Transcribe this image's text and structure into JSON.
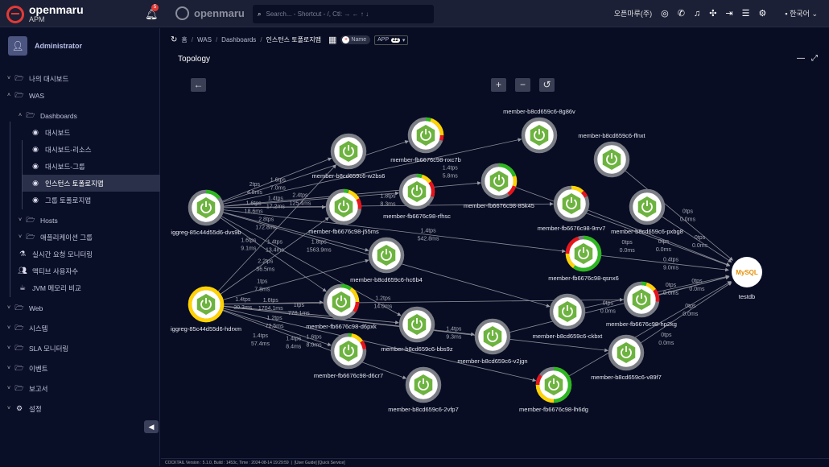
{
  "header": {
    "brand": "openmaru",
    "brand_sub": "APM",
    "notification_count": "5",
    "logo2": "openmaru",
    "search_placeholder": "Search... - Shortcut - /, Ctl: → ← ↑ ↓",
    "company": "오픈마루(주)",
    "language": "한국어",
    "icons": [
      "chat-monitor-icon",
      "phone-icon",
      "bell-icon",
      "fullscreen-icon",
      "logout-icon",
      "menu-icon",
      "gear-icon"
    ]
  },
  "sidebar": {
    "user": "Administrator",
    "items": [
      {
        "label": "나의 대시보드",
        "level": 0,
        "chev": "down",
        "icon": "folder"
      },
      {
        "label": "WAS",
        "level": 0,
        "chev": "up",
        "icon": "folder"
      },
      {
        "label": "Dashboards",
        "level": 1,
        "chev": "up",
        "icon": "folder"
      },
      {
        "label": "대시보드",
        "level": 2,
        "icon": "gauge"
      },
      {
        "label": "대시보드-리소스",
        "level": 2,
        "icon": "gauge"
      },
      {
        "label": "대시보드-그룹",
        "level": 2,
        "icon": "gauge"
      },
      {
        "label": "인스턴스 토폴로지맵",
        "level": 2,
        "icon": "gauge",
        "active": true
      },
      {
        "label": "그룹 토폴로지맵",
        "level": 2,
        "icon": "gauge"
      },
      {
        "label": "Hosts",
        "level": 1,
        "chev": "down",
        "icon": "folder"
      },
      {
        "label": "애플리케이션 그룹",
        "level": 1,
        "chev": "down",
        "icon": "folder"
      },
      {
        "label": "실시간 요청 모니터링",
        "level": 1,
        "icon": "flask"
      },
      {
        "label": "액티브 사용자수",
        "level": 1,
        "icon": "users"
      },
      {
        "label": "JVM 메모리 비교",
        "level": 1,
        "icon": "coffee"
      },
      {
        "label": "Web",
        "level": 0,
        "chev": "down",
        "icon": "folder"
      },
      {
        "label": "시스템",
        "level": 0,
        "chev": "down",
        "icon": "folder"
      },
      {
        "label": "SLA 모니터링",
        "level": 0,
        "chev": "down",
        "icon": "folder"
      },
      {
        "label": "이벤트",
        "level": 0,
        "chev": "down",
        "icon": "folder"
      },
      {
        "label": "보고서",
        "level": 0,
        "chev": "down",
        "icon": "folder"
      },
      {
        "label": "설정",
        "level": 0,
        "chev": "down",
        "icon": "gears"
      }
    ]
  },
  "breadcrumb": [
    "홈",
    "WAS",
    "Dashboards",
    "인스턴스 토폴로지맵"
  ],
  "filter": {
    "name_label": "Name",
    "app_label": "APP",
    "app_count": "22"
  },
  "panel": {
    "title": "Topology"
  },
  "topology": {
    "nodes": [
      {
        "id": "iggreg-85c44d55d6-dvs9b",
        "type": "spring",
        "ring": {
          "green": 0.15,
          "yellow": 0,
          "red": 0
        }
      },
      {
        "id": "iggreg-85c44d55d6-hdrxm",
        "type": "spring",
        "ring": {
          "green": 0,
          "yellow": 1,
          "red": 0
        }
      },
      {
        "id": "member-b8cd659c6-w2bs6",
        "type": "spring",
        "ring": {
          "green": 0,
          "yellow": 0,
          "red": 0
        }
      },
      {
        "id": "member-fb6676c98-nxc7b",
        "type": "spring",
        "ring": {
          "green": 0.05,
          "yellow": 0.2,
          "red": 0.05
        }
      },
      {
        "id": "member-b8cd659c6-8g86v",
        "type": "spring",
        "ring": {
          "green": 0,
          "yellow": 0,
          "red": 0
        }
      },
      {
        "id": "member-b8cd659c6-ffnxt",
        "type": "spring",
        "ring": {
          "green": 0,
          "yellow": 0,
          "red": 0
        }
      },
      {
        "id": "member-fb6676c98-j55ms",
        "type": "spring",
        "ring": {
          "green": 0.05,
          "yellow": 0.12,
          "red": 0.1
        }
      },
      {
        "id": "member-fb6676c98-rfhsc",
        "type": "spring",
        "ring": {
          "green": 0.05,
          "yellow": 0.1,
          "red": 0.15
        }
      },
      {
        "id": "member-fb6676c98-85k45",
        "type": "spring",
        "ring": {
          "green": 0.2,
          "yellow": 0.1,
          "red": 0.1
        }
      },
      {
        "id": "member-fb6676c98-9rrv7",
        "type": "spring",
        "ring": {
          "green": 0,
          "yellow": 0.12,
          "red": 0.06
        }
      },
      {
        "id": "member-b8cd659c6-pxbg8",
        "type": "spring",
        "ring": {
          "green": 0,
          "yellow": 0,
          "red": 0
        }
      },
      {
        "id": "member-b8cd659c6-hc6b4",
        "type": "spring",
        "ring": {
          "green": 0,
          "yellow": 0,
          "red": 0
        }
      },
      {
        "id": "member-fb6676c98-qsnx6",
        "type": "spring",
        "ring": {
          "green": 0.6,
          "yellow": 0.15,
          "red": 0.2
        }
      },
      {
        "id": "member-fb6676c98-d6pxk",
        "type": "spring",
        "ring": {
          "green": 0.1,
          "yellow": 0.15,
          "red": 0.1
        }
      },
      {
        "id": "member-b8cd659c6-bbs9z",
        "type": "spring",
        "ring": {
          "green": 0,
          "yellow": 0,
          "red": 0
        }
      },
      {
        "id": "member-b8cd659c6-ckbxt",
        "type": "spring",
        "ring": {
          "green": 0,
          "yellow": 0,
          "red": 0
        }
      },
      {
        "id": "member-fb6676c98-hp2kg",
        "type": "spring",
        "ring": {
          "green": 0.05,
          "yellow": 0.1,
          "red": 0.12
        }
      },
      {
        "id": "member-b8cd659c6-v2jgn",
        "type": "spring",
        "ring": {
          "green": 0,
          "yellow": 0,
          "red": 0
        }
      },
      {
        "id": "member-fb6676c98-d6cr7",
        "type": "spring",
        "ring": {
          "green": 0.03,
          "yellow": 0.12,
          "red": 0.08
        }
      },
      {
        "id": "member-b8cd659c6-v89f7",
        "type": "spring",
        "ring": {
          "green": 0,
          "yellow": 0,
          "red": 0
        }
      },
      {
        "id": "member-b8cd659c6-2vfp7",
        "type": "spring",
        "ring": {
          "green": 0,
          "yellow": 0,
          "red": 0
        }
      },
      {
        "id": "member-fb6676c98-lh6dg",
        "type": "spring",
        "ring": {
          "green": 0.5,
          "yellow": 0.25,
          "red": 0.1
        }
      },
      {
        "id": "testdb",
        "type": "mysql",
        "ring": {
          "green": 0,
          "yellow": 0,
          "red": 0
        }
      }
    ],
    "edges": [
      [
        "iggreg-85c44d55d6-dvs9b",
        "member-b8cd659c6-w2bs6",
        "2tps",
        "4.8ms"
      ],
      [
        "iggreg-85c44d55d6-dvs9b",
        "member-fb6676c98-nxc7b",
        "1.6tps",
        "7.0ms"
      ],
      [
        "iggreg-85c44d55d6-dvs9b",
        "member-fb6676c98-j55ms",
        "1.6tps",
        "18.6ms"
      ],
      [
        "iggreg-85c44d55d6-dvs9b",
        "member-fb6676c98-rfhsc",
        "1.4tps",
        "17.2ms"
      ],
      [
        "iggreg-85c44d55d6-dvs9b",
        "member-fb6676c98-85k45",
        "2.4tps",
        "125.4ms"
      ],
      [
        "iggreg-85c44d55d6-dvs9b",
        "member-b8cd659c6-hc6b4",
        "2.8tps",
        "172.8ms"
      ],
      [
        "iggreg-85c44d55d6-dvs9b",
        "member-fb6676c98-9rrv7",
        "1.8tps",
        "8.3ms"
      ],
      [
        "iggreg-85c44d55d6-dvs9b",
        "member-b8cd659c6-8g86v",
        "1.4tps",
        "5.8ms"
      ],
      [
        "iggreg-85c44d55d6-dvs9b",
        "member-fb6676c98-qsnx6",
        "1.4tps",
        "542.8ms"
      ],
      [
        "iggreg-85c44d55d6-dvs9b",
        "member-fb6676c98-d6pxk",
        "1.6tps",
        "9.1ms"
      ],
      [
        "iggreg-85c44d55d6-dvs9b",
        "member-b8cd659c6-bbs9z",
        "1.4tps",
        "13.4ms"
      ],
      [
        "iggreg-85c44d55d6-dvs9b",
        "member-b8cd659c6-ckbxt",
        "1.8tps",
        "1563.9ms"
      ],
      [
        "iggreg-85c44d55d6-hdrxm",
        "member-b8cd659c6-w2bs6",
        "2.2tps",
        "36.5ms"
      ],
      [
        "iggreg-85c44d55d6-hdrxm",
        "member-fb6676c98-j55ms",
        "1tps",
        "7.8ms"
      ],
      [
        "iggreg-85c44d55d6-hdrxm",
        "member-b8cd659c6-hc6b4",
        "1.6tps",
        "1704.1ms"
      ],
      [
        "iggreg-85c44d55d6-hdrxm",
        "member-fb6676c98-d6pxk",
        "1.4tps",
        "30.3ms"
      ],
      [
        "iggreg-85c44d55d6-hdrxm",
        "member-b8cd659c6-bbs9z",
        "1.2tps",
        "72.5ms"
      ],
      [
        "iggreg-85c44d55d6-hdrxm",
        "member-fb6676c98-d6cr7",
        "1.4tps",
        "57.4ms"
      ],
      [
        "iggreg-85c44d55d6-hdrxm",
        "member-b8cd659c6-2vfp7",
        "1.4tps",
        "8.4ms"
      ],
      [
        "iggreg-85c44d55d6-hdrxm",
        "member-b8cd659c6-v2jgn",
        "1tps",
        "778.1ms"
      ],
      [
        "iggreg-85c44d55d6-hdrxm",
        "member-fb6676c98-hp2kg",
        "1.2tps",
        "14.0ms"
      ],
      [
        "iggreg-85c44d55d6-hdrxm",
        "member-fb6676c98-lh6dg",
        "1.6tps",
        "8.0ms"
      ],
      [
        "iggreg-85c44d55d6-hdrxm",
        "member-b8cd659c6-v89f7",
        "1.4tps",
        "9.3ms"
      ],
      [
        "member-b8cd659c6-ffnxt",
        "testdb",
        "0tps",
        "0.0ms"
      ],
      [
        "member-b8cd659c6-pxbg8",
        "testdb",
        "0tps",
        "0.0ms"
      ],
      [
        "member-fb6676c98-9rrv7",
        "testdb",
        "0tps",
        "0.0ms"
      ],
      [
        "member-fb6676c98-qsnx6",
        "testdb",
        "0.4tps",
        "9.0ms"
      ],
      [
        "member-fb6676c98-85k45",
        "testdb",
        "0tps",
        "0.0ms"
      ],
      [
        "member-fb6676c98-hp2kg",
        "testdb",
        "0tps",
        "0.0ms"
      ],
      [
        "member-b8cd659c6-ckbxt",
        "testdb",
        "0tps",
        "0.0ms"
      ],
      [
        "member-b8cd659c6-v89f7",
        "testdb",
        "0tps",
        "0.0ms"
      ],
      [
        "member-fb6676c98-lh6dg",
        "testdb",
        "0tps",
        "0.0ms"
      ],
      [
        "member-b8cd659c6-v2jgn",
        "testdb",
        "0tps",
        "0.0ms"
      ]
    ]
  },
  "footer": {
    "version": "COCKTAIL Version : 5.1.0, Build : 1453c, Time : 2024-08-14 19:29:59",
    "links": "[User Guide] [Quick Service]"
  },
  "colors": {
    "background": "#080d24",
    "ok": "#2db81f",
    "warn": "#ffd200",
    "danger": "#e8141a",
    "node_ring": "#7b7d85",
    "spring": "#6db33f"
  }
}
